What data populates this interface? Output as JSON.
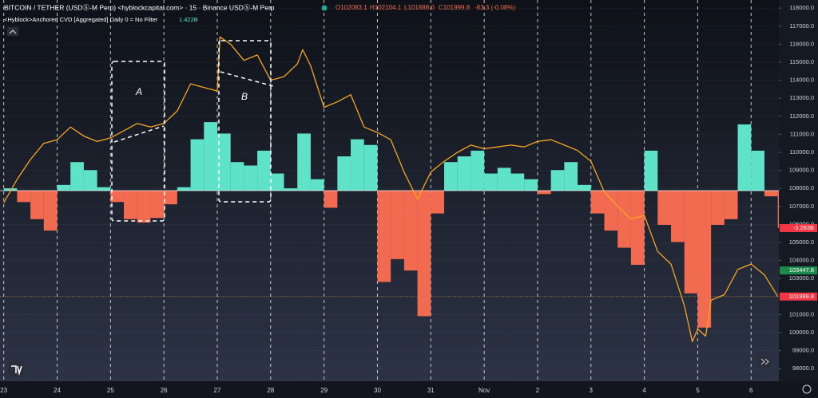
{
  "chart_data": {
    "type": "line",
    "header": {
      "ohlc": [
        "O102083.1",
        "H102104.1",
        "L101888.0",
        "C101999.8"
      ],
      "change": "-83.3 (-0.08%)",
      "indicator_value": "1.422B"
    },
    "annotations": [
      {
        "text": "A"
      },
      {
        "text": "B"
      }
    ],
    "xlim": [
      -0.07,
      14.52
    ],
    "xticks": [
      {
        "value": 0,
        "label": "23"
      },
      {
        "value": 1,
        "label": "24"
      },
      {
        "value": 2,
        "label": "25"
      },
      {
        "value": 3,
        "label": "26"
      },
      {
        "value": 4,
        "label": "27"
      },
      {
        "value": 5,
        "label": "28"
      },
      {
        "value": 6,
        "label": "29"
      },
      {
        "value": 7,
        "label": "30"
      },
      {
        "value": 8,
        "label": "31"
      },
      {
        "value": 9,
        "label": "Nov"
      },
      {
        "value": 10,
        "label": "2"
      },
      {
        "value": 11,
        "label": "3"
      },
      {
        "value": 12,
        "label": "4"
      },
      {
        "value": 13,
        "label": "5"
      },
      {
        "value": 14,
        "label": "6"
      }
    ],
    "ylim": [
      97300,
      118450
    ],
    "yticks": [
      {
        "value": 98000,
        "label": "98000.0"
      },
      {
        "value": 99000,
        "label": "99000.0"
      },
      {
        "value": 100000,
        "label": "100000.0"
      },
      {
        "value": 101000,
        "label": "101000.0"
      },
      {
        "value": 102000,
        "label": "102000.0"
      },
      {
        "value": 103000,
        "label": "103000.0"
      },
      {
        "value": 104000,
        "label": "104000.0"
      },
      {
        "value": 105000,
        "label": "105000.0"
      },
      {
        "value": 106000,
        "label": "106000.0"
      },
      {
        "value": 107000,
        "label": "107000.0"
      },
      {
        "value": 108000,
        "label": "108000.0"
      },
      {
        "value": 109000,
        "label": "109000.0"
      },
      {
        "value": 110000,
        "label": "110000.0"
      },
      {
        "value": 111000,
        "label": "111000.0"
      },
      {
        "value": 112000,
        "label": "112000.0"
      },
      {
        "value": 113000,
        "label": "113000.0"
      },
      {
        "value": 114000,
        "label": "114000.0"
      },
      {
        "value": 115000,
        "label": "115000.0"
      },
      {
        "value": 116000,
        "label": "116000.0"
      },
      {
        "value": 117000,
        "label": "117000.0"
      },
      {
        "value": 118000,
        "label": "118000.0"
      }
    ],
    "y2lim": [
      -16.7,
      16.7
    ],
    "series": [
      {
        "name": "BITCOIN / TETHER (USDⓈ-M Perp) <hyblockcapital.com> · 15 · Binance USDⓈ-M Perp",
        "color": "#f5a623",
        "x": [
          0,
          0.25,
          0.5,
          0.75,
          1,
          1.25,
          1.5,
          1.75,
          2,
          2.25,
          2.5,
          2.75,
          3,
          3.25,
          3.5,
          3.75,
          4,
          4.05,
          4.25,
          4.5,
          4.75,
          5,
          5.25,
          5.5,
          5.6,
          5.75,
          6,
          6.25,
          6.5,
          6.75,
          7,
          7.25,
          7.5,
          7.75,
          8,
          8.25,
          8.5,
          8.75,
          9,
          9.25,
          9.5,
          9.75,
          10,
          10.25,
          10.5,
          10.75,
          11,
          11.25,
          11.5,
          11.75,
          12,
          12.25,
          12.5,
          12.75,
          12.9,
          13,
          13.15,
          13.25,
          13.5,
          13.75,
          14,
          14.25,
          14.5
        ],
        "values": [
          107200,
          108500,
          109600,
          110500,
          110700,
          111400,
          110900,
          110600,
          110800,
          111200,
          111600,
          111400,
          111600,
          112300,
          113800,
          113600,
          113400,
          116400,
          116000,
          115100,
          115400,
          114000,
          114200,
          114900,
          115700,
          114800,
          112500,
          112800,
          113200,
          111400,
          111100,
          110700,
          108900,
          107400,
          108900,
          109500,
          110000,
          110400,
          110200,
          110300,
          110400,
          110300,
          110600,
          110700,
          110400,
          110100,
          109500,
          107800,
          107000,
          106300,
          106500,
          104500,
          103800,
          101500,
          99500,
          100200,
          99800,
          101800,
          102100,
          103500,
          103800,
          103200,
          102000
        ]
      },
      {
        "name": "<Hyblock>Anchored CVD [Aggregated] Daily 0 = No Filter",
        "axis": "y2",
        "color": "#5fe3c8",
        "negative_color": "#f26a4f",
        "x": [
          0,
          0.25,
          0.5,
          0.75,
          1,
          1.25,
          1.5,
          1.75,
          2,
          2.25,
          2.5,
          2.75,
          3,
          3.25,
          3.5,
          3.75,
          4,
          4.25,
          4.5,
          4.75,
          5,
          5.25,
          5.5,
          5.75,
          6,
          6.25,
          6.5,
          6.75,
          7,
          7.25,
          7.5,
          7.75,
          8,
          8.25,
          8.5,
          8.75,
          9,
          9.25,
          9.5,
          9.75,
          10,
          10.25,
          10.5,
          10.75,
          11,
          11.25,
          11.5,
          11.75,
          12,
          12.25,
          12.5,
          12.75,
          13,
          13.25,
          13.5,
          13.75,
          14,
          14.25,
          14.5
        ],
        "values": [
          0.2,
          -1,
          -2.5,
          -3.5,
          0.5,
          2.5,
          1.8,
          0.3,
          -1,
          -2.5,
          -2.8,
          -2.4,
          -1.2,
          0.3,
          4.5,
          6,
          5,
          2.5,
          2.2,
          3.5,
          1.5,
          0.2,
          5,
          1,
          -1.5,
          3,
          4.5,
          4,
          -8,
          -6,
          -7,
          -11,
          -2,
          2.5,
          3,
          3.5,
          1.5,
          2,
          1.5,
          1,
          -0.3,
          1.8,
          2.5,
          0.5,
          -2,
          -3.5,
          -5,
          -6.5,
          3.5,
          -3,
          -4.5,
          -9,
          -12,
          -3,
          -2.5,
          5.8,
          3.5,
          -0.5,
          -3.283
        ]
      }
    ],
    "price_labels": [
      {
        "value": 103447.8,
        "color": "#1b8a4a"
      },
      {
        "value": 101999.8,
        "color": "#f23645"
      }
    ],
    "cvd_label": {
      "value": -3.283,
      "label": "-3.283B",
      "color": "#f23645"
    }
  }
}
